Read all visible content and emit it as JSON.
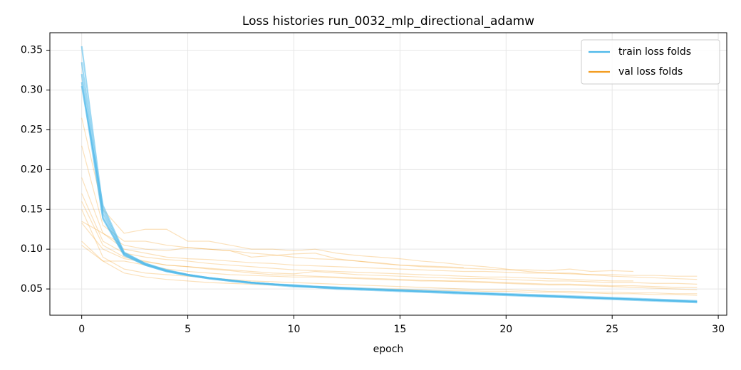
{
  "chart_data": {
    "type": "line",
    "title": "Loss histories run_0032_mlp_directional_adamw",
    "x_label": "epoch",
    "x": [
      0,
      1,
      2,
      3,
      4,
      5,
      6,
      7,
      8,
      9,
      10,
      11,
      12,
      13,
      14,
      15,
      16,
      17,
      18,
      19,
      20,
      21,
      22,
      23,
      24,
      25,
      26,
      27,
      28,
      29
    ],
    "xlim": [
      -1.5,
      30.4
    ],
    "ylim": [
      0.017,
      0.372
    ],
    "xticks": [
      0,
      5,
      10,
      15,
      20,
      25,
      30
    ],
    "yticks": [
      0.05,
      {
        "value": 0.1,
        "label": "0.10"
      },
      0.15,
      {
        "value": 0.2,
        "label": "0.20"
      },
      0.25,
      {
        "value": 0.3,
        "label": "0.30"
      },
      0.35
    ],
    "grid": true,
    "legend": "upper right",
    "series": [
      {
        "name": "train loss folds",
        "color": "#4db8ea",
        "values": [
          [
            0.355,
            0.15,
            0.095,
            0.082,
            0.073,
            0.068,
            0.064,
            0.061,
            0.058,
            0.056,
            0.054,
            0.053,
            0.051,
            0.05,
            0.049,
            0.048,
            0.047,
            0.046,
            0.045,
            0.044,
            0.043,
            0.042,
            0.041,
            0.04,
            0.039,
            0.038,
            0.037,
            0.036,
            0.035,
            0.034
          ],
          [
            0.335,
            0.145,
            0.094,
            0.081,
            0.073,
            0.068,
            0.064,
            0.061,
            0.058,
            0.056,
            0.055,
            0.053,
            0.052,
            0.051,
            0.05,
            0.049,
            0.048,
            0.047,
            0.046,
            0.045,
            0.044,
            0.043,
            0.042,
            0.041,
            0.04,
            0.039,
            0.038,
            0.037,
            0.036,
            0.035
          ],
          [
            0.32,
            0.14,
            0.093,
            0.08,
            0.072,
            0.067,
            0.063,
            0.06,
            0.057,
            0.055,
            0.053,
            0.052,
            0.05,
            0.049,
            0.048,
            0.047,
            0.046,
            0.045,
            0.044,
            0.043,
            0.042,
            0.041,
            0.04,
            0.039,
            0.038,
            0.037,
            0.036,
            0.035,
            0.034,
            0.033
          ],
          [
            0.31,
            0.138,
            0.092,
            0.08,
            0.072,
            0.067,
            0.063,
            0.06,
            0.058,
            0.056,
            0.054,
            0.052,
            0.051,
            0.05,
            0.049,
            0.048,
            0.047,
            0.046,
            0.045,
            0.044,
            0.043,
            0.042,
            0.041,
            0.04,
            0.039,
            0.038,
            0.037,
            0.036,
            0.035,
            0.034
          ],
          [
            0.305,
            0.155,
            0.096,
            0.082,
            0.074,
            0.068,
            0.064,
            0.061,
            0.058,
            0.056,
            0.054,
            0.053,
            0.052,
            0.05,
            0.049,
            0.048,
            0.047,
            0.046,
            0.045,
            0.044,
            0.043,
            0.042,
            0.041,
            0.04,
            0.039,
            0.038,
            0.037,
            0.036,
            0.035,
            0.034
          ]
        ]
      },
      {
        "name": "val loss folds",
        "color": "#f39c1f",
        "values": [
          [
            0.265,
            0.15,
            0.12,
            0.125,
            0.125,
            0.11,
            0.11,
            0.105,
            0.1,
            0.1,
            0.098,
            0.1,
            0.095,
            0.092,
            0.09,
            0.088,
            0.085,
            0.083,
            0.08,
            0.078,
            0.075,
            0.072,
            0.07,
            0.07,
            0.068,
            0.066,
            0.065,
            0.064,
            0.063,
            0.062
          ],
          [
            0.23,
            0.13,
            0.11,
            0.11,
            0.105,
            0.102,
            0.1,
            0.098,
            0.095,
            0.093,
            0.09,
            0.088,
            0.087,
            0.085,
            0.083,
            0.08,
            0.079,
            0.078,
            0.077,
            null,
            null,
            null,
            null,
            null,
            null,
            null,
            null,
            null,
            null,
            null
          ],
          [
            0.19,
            0.12,
            0.1,
            0.095,
            0.09,
            0.088,
            0.087,
            0.085,
            0.083,
            0.082,
            0.08,
            0.079,
            0.078,
            0.077,
            0.076,
            0.075,
            0.074,
            0.073,
            0.072,
            0.072,
            0.071,
            0.07,
            0.07,
            0.069,
            0.068,
            0.068,
            0.067,
            0.067,
            0.066,
            0.066
          ],
          [
            0.17,
            0.11,
            0.095,
            0.09,
            0.087,
            0.085,
            0.082,
            0.08,
            0.078,
            0.076,
            0.074,
            0.073,
            0.072,
            0.071,
            0.07,
            0.069,
            0.068,
            0.067,
            0.066,
            0.065,
            0.065,
            0.064,
            0.063,
            0.062,
            0.061,
            0.06,
            0.06,
            null,
            null,
            null
          ],
          [
            0.16,
            0.105,
            0.09,
            0.085,
            0.08,
            0.078,
            0.076,
            0.074,
            0.072,
            0.07,
            0.069,
            0.072,
            0.07,
            0.068,
            0.067,
            0.066,
            0.065,
            0.064,
            0.063,
            0.063,
            0.062,
            0.061,
            0.06,
            0.06,
            0.059,
            0.058,
            0.058,
            0.057,
            0.057,
            0.056
          ],
          [
            0.135,
            0.12,
            0.105,
            0.1,
            0.098,
            0.102,
            0.1,
            0.098,
            0.09,
            0.092,
            0.094,
            0.095,
            0.088,
            0.085,
            0.082,
            0.08,
            0.078,
            0.077,
            0.076,
            0.075,
            0.074,
            0.074,
            0.073,
            0.075,
            0.072,
            0.073,
            0.072,
            null,
            null,
            null
          ],
          [
            0.133,
            0.1,
            0.088,
            0.084,
            0.08,
            0.078,
            0.075,
            0.073,
            0.07,
            0.068,
            0.067,
            0.066,
            0.065,
            0.064,
            0.063,
            0.062,
            0.061,
            0.06,
            0.06,
            0.059,
            0.058,
            0.057,
            0.056,
            0.056,
            0.055,
            0.054,
            0.054,
            0.053,
            0.052,
            0.052
          ],
          [
            0.105,
            0.085,
            0.085,
            0.08,
            0.075,
            0.072,
            0.07,
            0.068,
            0.067,
            0.066,
            0.065,
            0.065,
            0.064,
            0.063,
            0.062,
            0.061,
            0.06,
            0.06,
            0.059,
            0.058,
            0.057,
            0.056,
            0.055,
            0.055,
            0.054,
            0.053,
            0.052,
            0.051,
            0.05,
            0.049
          ],
          [
            0.15,
            0.09,
            0.075,
            0.07,
            0.068,
            0.066,
            0.064,
            0.062,
            0.06,
            0.059,
            0.058,
            0.057,
            0.056,
            0.055,
            0.054,
            0.053,
            0.052,
            0.051,
            0.05,
            0.049,
            0.049,
            0.048,
            0.047,
            0.047,
            0.046,
            0.046,
            0.045,
            0.045,
            0.044,
            0.044
          ],
          [
            0.11,
            0.085,
            0.07,
            0.065,
            0.062,
            0.06,
            0.058,
            0.057,
            0.056,
            0.055,
            0.054,
            0.053,
            0.052,
            0.051,
            0.05,
            0.05,
            0.049,
            0.048,
            0.048,
            0.047,
            0.047,
            0.046,
            0.046,
            0.045,
            0.045,
            0.044,
            0.044,
            0.043,
            0.043,
            0.042
          ]
        ]
      }
    ]
  }
}
